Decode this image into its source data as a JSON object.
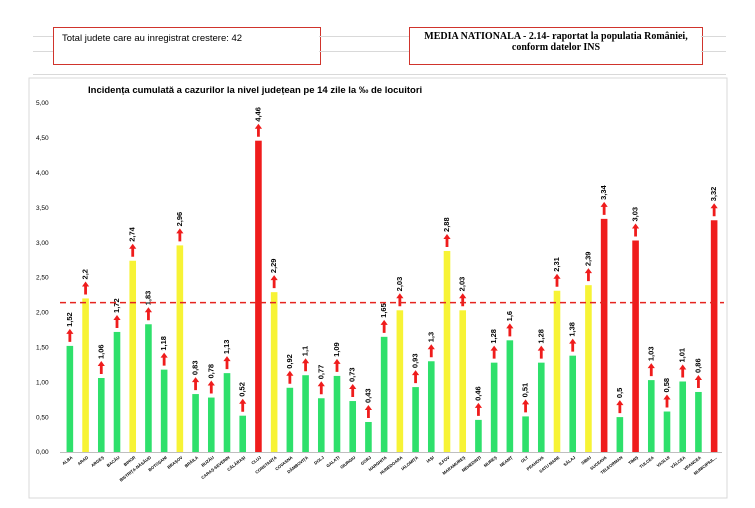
{
  "header": {
    "left_text": "Total judete care au inregistrat crestere: 42",
    "right_line1": "MEDIA NATIONALA - 2.14-  raportat la populatia României,",
    "right_line2": "conform datelor INS"
  },
  "colors": {
    "green": "#2ee06b",
    "yellow": "#f7f335",
    "red": "#ef1c1c",
    "arrow": "#ef1c1c",
    "average_line": "#e52520",
    "axis": "#bfbfbf"
  },
  "chart_data": {
    "type": "bar",
    "title": "Incidența cumulată a cazurilor la nivel județean pe 14 zile la ‰ de locuitori",
    "xlabel": "",
    "ylabel": "",
    "ylim": [
      0,
      5
    ],
    "y_ticks": [
      "0,00",
      "0,50",
      "1,00",
      "1,50",
      "2,00",
      "2,50",
      "3,00",
      "3,50",
      "4,00",
      "4,50",
      "5,00"
    ],
    "average": 2.14,
    "grid": false,
    "trend_icon": "up-arrow-icon",
    "categories": [
      "ALBA",
      "ARAD",
      "ARGEȘ",
      "BACĂU",
      "BIHOR",
      "BISTRIȚA-NĂSĂUD",
      "BOTOȘANI",
      "BRAȘOV",
      "BRĂILA",
      "BUZĂU",
      "CARAȘ-SEVERIN",
      "CĂLĂRAȘI",
      "CLUJ",
      "CONSTANȚA",
      "COVASNA",
      "DÂMBOVIȚA",
      "DOLJ",
      "GALAȚI",
      "GIURGIU",
      "GORJ",
      "HARGHITA",
      "HUNEDOARA",
      "IALOMIȚA",
      "IAȘI",
      "ILFOV",
      "MARAMUREȘ",
      "MEHEDINȚI",
      "MUREȘ",
      "NEAMȚ",
      "OLT",
      "PRAHOVA",
      "SATU MARE",
      "SĂLAJ",
      "SIBIU",
      "SUCEAVA",
      "TELEORMAN",
      "TIMIȘ",
      "TULCEA",
      "VASLUI",
      "VÂLCEA",
      "VRANCEA",
      "MUNICIPIUL..."
    ],
    "values": [
      1.52,
      2.2,
      1.06,
      1.72,
      2.74,
      1.83,
      1.18,
      2.96,
      0.83,
      0.78,
      1.13,
      0.52,
      4.46,
      2.29,
      0.92,
      1.1,
      0.77,
      1.09,
      0.73,
      0.43,
      1.65,
      2.03,
      0.93,
      1.3,
      2.88,
      2.03,
      0.46,
      1.28,
      1.6,
      0.51,
      1.28,
      2.31,
      1.38,
      2.39,
      3.34,
      0.5,
      3.03,
      1.03,
      0.58,
      1.01,
      0.86,
      3.32
    ],
    "labels": [
      "1,52",
      "2,2",
      "1,06",
      "1,72",
      "2,74",
      "1,83",
      "1,18",
      "2,96",
      "0,83",
      "0,78",
      "1,13",
      "0,52",
      "4,46",
      "2,29",
      "0,92",
      "1,1",
      "0,77",
      "1,09",
      "0,73",
      "0,43",
      "1,65",
      "2,03",
      "0,93",
      "1,3",
      "2,88",
      "2,03",
      "0,46",
      "1,28",
      "1,6",
      "0,51",
      "1,28",
      "2,31",
      "1,38",
      "2,39",
      "3,34",
      "0,5",
      "3,03",
      "1,03",
      "0,58",
      "1,01",
      "0,86",
      "3,32"
    ],
    "bar_colors": [
      "green",
      "yellow",
      "green",
      "green",
      "yellow",
      "green",
      "green",
      "yellow",
      "green",
      "green",
      "green",
      "green",
      "red",
      "yellow",
      "green",
      "green",
      "green",
      "green",
      "green",
      "green",
      "green",
      "yellow",
      "green",
      "green",
      "yellow",
      "yellow",
      "green",
      "green",
      "green",
      "green",
      "green",
      "yellow",
      "green",
      "yellow",
      "red",
      "green",
      "red",
      "green",
      "green",
      "green",
      "green",
      "red"
    ]
  }
}
